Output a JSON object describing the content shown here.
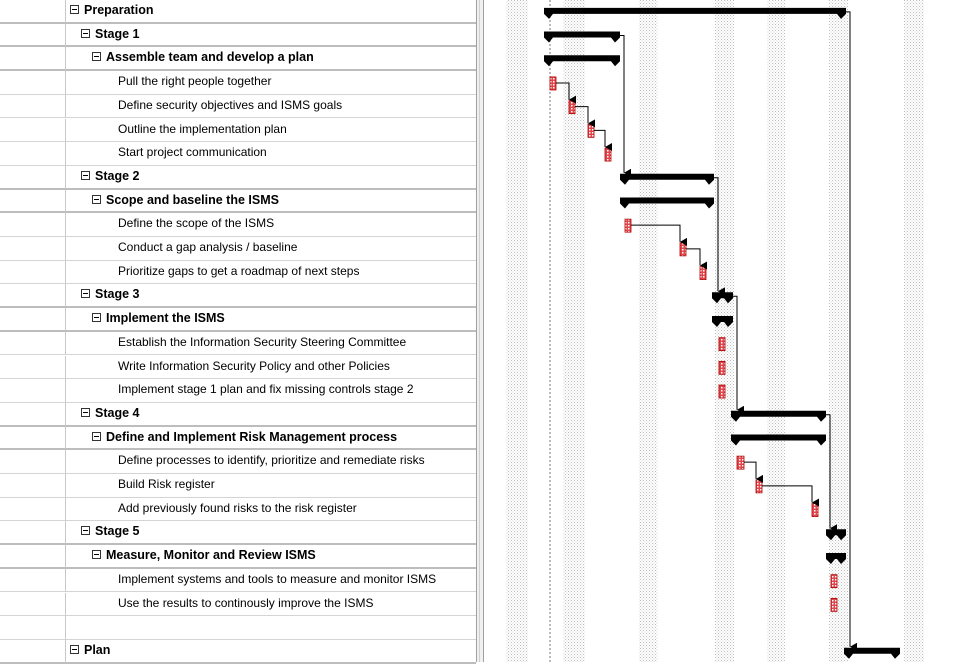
{
  "tasks": [
    {
      "name": "Preparation",
      "level": 0,
      "summary": true
    },
    {
      "name": "Stage 1",
      "level": 1,
      "summary": true
    },
    {
      "name": "Assemble team and develop a plan",
      "level": 2,
      "summary": true
    },
    {
      "name": "Pull the right people together",
      "level": 3,
      "summary": false
    },
    {
      "name": "Define security objectives and ISMS goals",
      "level": 3,
      "summary": false
    },
    {
      "name": "Outline the implementation plan",
      "level": 3,
      "summary": false
    },
    {
      "name": "Start project communication",
      "level": 3,
      "summary": false
    },
    {
      "name": "Stage 2",
      "level": 1,
      "summary": true
    },
    {
      "name": "Scope and baseline the ISMS",
      "level": 2,
      "summary": true
    },
    {
      "name": "Define the scope of the ISMS",
      "level": 3,
      "summary": false
    },
    {
      "name": "Conduct a gap analysis / baseline",
      "level": 3,
      "summary": false
    },
    {
      "name": "Prioritize gaps to get a roadmap of next steps",
      "level": 3,
      "summary": false
    },
    {
      "name": "Stage 3",
      "level": 1,
      "summary": true
    },
    {
      "name": "Implement the ISMS",
      "level": 2,
      "summary": true
    },
    {
      "name": "Establish the Information Security Steering Committee",
      "level": 3,
      "summary": false
    },
    {
      "name": "Write Information Security Policy and other Policies",
      "level": 3,
      "summary": false
    },
    {
      "name": "Implement stage 1 plan and fix missing controls stage 2",
      "level": 3,
      "summary": false
    },
    {
      "name": "Stage 4",
      "level": 1,
      "summary": true
    },
    {
      "name": "Define and Implement Risk Management process",
      "level": 2,
      "summary": true
    },
    {
      "name": "Define processes to identify, prioritize and remediate risks",
      "level": 3,
      "summary": false
    },
    {
      "name": "Build Risk register",
      "level": 3,
      "summary": false
    },
    {
      "name": "Add previously found risks to the risk register",
      "level": 3,
      "summary": false
    },
    {
      "name": "Stage 5",
      "level": 1,
      "summary": true
    },
    {
      "name": "Measure, Monitor and Review ISMS",
      "level": 2,
      "summary": true
    },
    {
      "name": "Implement systems and tools to measure and monitor ISMS",
      "level": 3,
      "summary": false
    },
    {
      "name": "Use the results to continously improve the ISMS",
      "level": 3,
      "summary": false
    },
    {
      "name": "",
      "level": 3,
      "summary": false
    },
    {
      "name": "Plan",
      "level": 0,
      "summary": true
    }
  ],
  "colors": {
    "summary_bar": "#000000",
    "task_bar": "#e0464b",
    "task_border": "#b00000",
    "weekend_shade": "#e6e6e6",
    "grid_line": "#d4d4d4"
  },
  "icons": {
    "toggle": "collapse-minus-icon"
  }
}
